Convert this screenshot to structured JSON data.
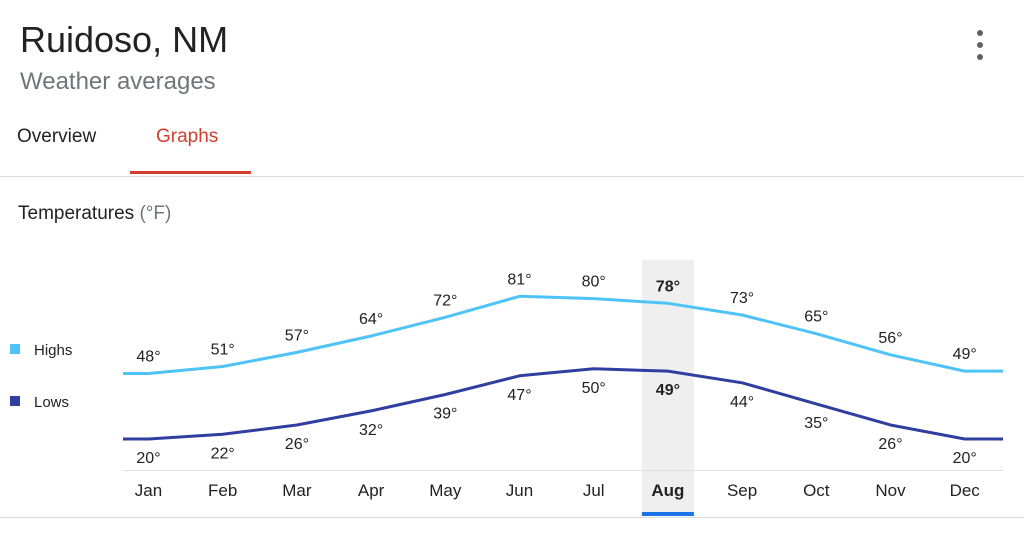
{
  "header": {
    "title": "Ruidoso, NM",
    "subtitle": "Weather averages"
  },
  "menu": {
    "icon": "more-vert-icon"
  },
  "tabs": [
    {
      "label": "Overview",
      "selected": false
    },
    {
      "label": "Graphs",
      "selected": true
    }
  ],
  "section": {
    "title": "Temperatures",
    "unit": "(°F)"
  },
  "colors": {
    "highs": "#4fc3f7",
    "lows": "#303f9f",
    "accent": "#d23f31",
    "selected_month": "#1a73e8"
  },
  "chart_data": {
    "type": "line",
    "categories": [
      "Jan",
      "Feb",
      "Mar",
      "Apr",
      "May",
      "Jun",
      "Jul",
      "Aug",
      "Sep",
      "Oct",
      "Nov",
      "Dec"
    ],
    "series": [
      {
        "name": "Highs",
        "values": [
          48,
          51,
          57,
          64,
          72,
          81,
          80,
          78,
          73,
          65,
          56,
          49
        ],
        "labels": [
          "48°",
          "51°",
          "57°",
          "64°",
          "72°",
          "81°",
          "80°",
          "78°",
          "73°",
          "65°",
          "56°",
          "49°"
        ]
      },
      {
        "name": "Lows",
        "values": [
          20,
          22,
          26,
          32,
          39,
          47,
          50,
          49,
          44,
          35,
          26,
          20
        ],
        "labels": [
          "20°",
          "22°",
          "26°",
          "32°",
          "39°",
          "47°",
          "50°",
          "49°",
          "44°",
          "35°",
          "26°",
          "20°"
        ]
      }
    ],
    "highlighted_category": "Aug",
    "unit": "°F"
  }
}
